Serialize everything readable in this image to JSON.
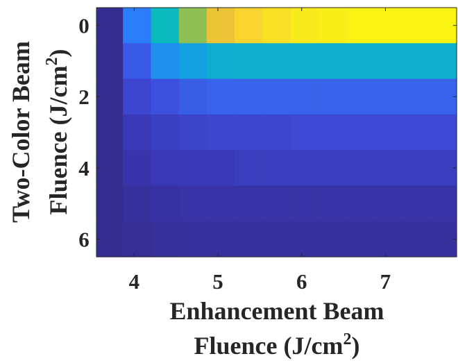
{
  "chart_data": {
    "type": "heatmap",
    "title": "",
    "xlabel_line1": "Enhancement Beam",
    "xlabel_line2_prefix": "Fluence (J/cm",
    "xlabel_line2_sup": "2",
    "xlabel_line2_suffix": ")",
    "ylabel_line1": "Two-Color Beam",
    "ylabel_line2_prefix": "Fluence (J/cm",
    "ylabel_line2_sup": "2",
    "ylabel_line2_suffix": ")",
    "x_ticks": [
      "4",
      "5",
      "6",
      "7"
    ],
    "x_tick_values": [
      4,
      5,
      6,
      7
    ],
    "y_ticks": [
      "0",
      "2",
      "4",
      "6"
    ],
    "y_tick_values": [
      0,
      2,
      4,
      6
    ],
    "xlim": [
      3.55,
      7.85
    ],
    "ylim": [
      -0.5,
      6.5
    ],
    "x": [
      3.7,
      4.033,
      4.367,
      4.7,
      5.033,
      5.367,
      5.7,
      6.033,
      6.367,
      6.7,
      7.033,
      7.367,
      7.7
    ],
    "y": [
      0,
      1,
      2,
      3,
      4,
      5,
      6
    ],
    "colormap": "parula",
    "clim": [
      0,
      1
    ],
    "values": [
      [
        0.02,
        0.3,
        0.5,
        0.7,
        0.84,
        0.9,
        0.93,
        0.96,
        0.97,
        0.98,
        0.98,
        0.98,
        0.98
      ],
      [
        0.02,
        0.22,
        0.35,
        0.4,
        0.45,
        0.46,
        0.46,
        0.46,
        0.46,
        0.46,
        0.46,
        0.46,
        0.46
      ],
      [
        0.02,
        0.16,
        0.2,
        0.23,
        0.24,
        0.24,
        0.24,
        0.24,
        0.24,
        0.24,
        0.24,
        0.24,
        0.24
      ],
      [
        0.02,
        0.11,
        0.13,
        0.15,
        0.16,
        0.16,
        0.16,
        0.17,
        0.17,
        0.17,
        0.17,
        0.17,
        0.17
      ],
      [
        0.02,
        0.08,
        0.1,
        0.11,
        0.11,
        0.12,
        0.12,
        0.12,
        0.12,
        0.12,
        0.12,
        0.12,
        0.12
      ],
      [
        0.02,
        0.05,
        0.06,
        0.07,
        0.07,
        0.07,
        0.07,
        0.07,
        0.07,
        0.07,
        0.07,
        0.07,
        0.07
      ],
      [
        0.02,
        0.03,
        0.04,
        0.05,
        0.05,
        0.05,
        0.05,
        0.05,
        0.05,
        0.05,
        0.05,
        0.05,
        0.05
      ]
    ],
    "grid": false,
    "legend": "none"
  }
}
